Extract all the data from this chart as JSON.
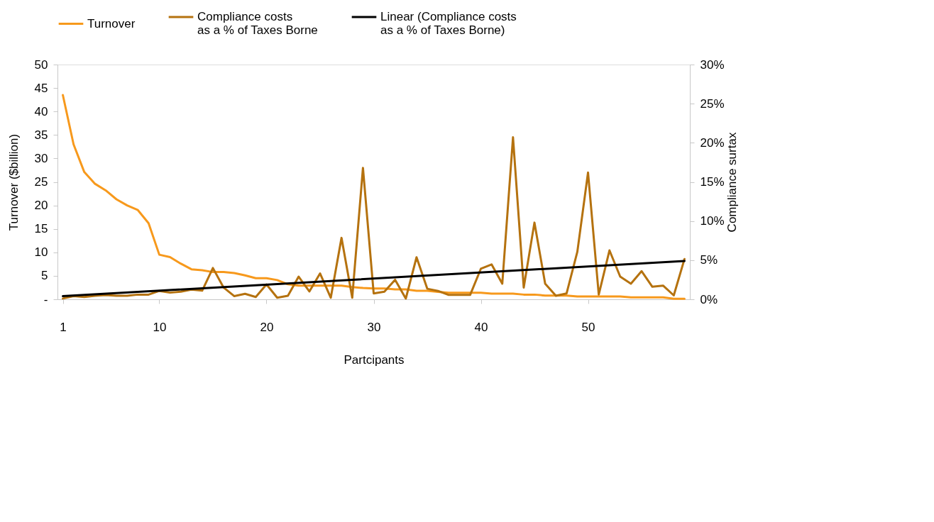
{
  "chart_data": {
    "type": "line",
    "xlabel": "Partcipants",
    "ylabel": "Turnover ($billion)",
    "y2label": "Compliance surtax",
    "legend": "top",
    "grid": false,
    "line_style": "solid",
    "marker": "none",
    "x": [
      1,
      2,
      3,
      4,
      5,
      6,
      7,
      8,
      9,
      10,
      11,
      12,
      13,
      14,
      15,
      16,
      17,
      18,
      19,
      20,
      21,
      22,
      23,
      24,
      25,
      26,
      27,
      28,
      29,
      30,
      31,
      32,
      33,
      34,
      35,
      36,
      37,
      38,
      39,
      40,
      41,
      42,
      43,
      44,
      45,
      46,
      47,
      48,
      49,
      50,
      51,
      52,
      53,
      54,
      55,
      56,
      57,
      58,
      59
    ],
    "xlim": [
      0.5,
      59.5
    ],
    "xticks": [
      1,
      10,
      20,
      30,
      40,
      50
    ],
    "ylim": [
      0,
      50
    ],
    "yticks": [
      {
        "value": 0,
        "label": "-"
      },
      5,
      10,
      15,
      20,
      25,
      30,
      35,
      40,
      45,
      50
    ],
    "y2lim": [
      0,
      30
    ],
    "y2ticks": [
      {
        "value": 0,
        "label": "0%"
      },
      {
        "value": 5,
        "label": "5%"
      },
      {
        "value": 10,
        "label": "10%"
      },
      {
        "value": 15,
        "label": "15%"
      },
      {
        "value": 20,
        "label": "20%"
      },
      {
        "value": 25,
        "label": "25%"
      },
      {
        "value": 30,
        "label": "30%"
      }
    ],
    "series": [
      {
        "name": "Turnover",
        "color": "#f7991c",
        "values": [
          43.5,
          33.0,
          27.1,
          24.6,
          23.2,
          21.3,
          20.0,
          19.0,
          16.2,
          9.5,
          9.0,
          7.6,
          6.4,
          6.2,
          5.8,
          5.8,
          5.6,
          5.1,
          4.5,
          4.5,
          4.1,
          3.2,
          2.9,
          2.9,
          2.9,
          2.9,
          2.9,
          2.6,
          2.4,
          2.3,
          2.3,
          2.1,
          2.1,
          1.8,
          1.8,
          1.6,
          1.4,
          1.4,
          1.4,
          1.4,
          1.2,
          1.2,
          1.2,
          1.0,
          1.0,
          0.8,
          0.8,
          0.8,
          0.6,
          0.6,
          0.6,
          0.6,
          0.6,
          0.4,
          0.4,
          0.4,
          0.4,
          0.1,
          0.1
        ]
      },
      {
        "name": "Compliance costs\nas a % of Taxes Borne",
        "color": "#b5720f",
        "axis": "y2",
        "values": [
          0.1,
          0.4,
          0.3,
          0.45,
          0.55,
          0.45,
          0.45,
          0.6,
          0.6,
          1.07,
          0.85,
          0.97,
          1.25,
          1.1,
          4.0,
          1.5,
          0.4,
          0.7,
          0.3,
          1.9,
          0.2,
          0.45,
          2.9,
          1.0,
          3.3,
          0.2,
          7.85,
          0.2,
          16.8,
          0.75,
          0.97,
          2.5,
          0.1,
          5.37,
          1.35,
          1.07,
          0.56,
          0.56,
          0.56,
          3.9,
          4.46,
          2.0,
          20.7,
          1.5,
          9.8,
          2.0,
          0.45,
          0.75,
          6.05,
          16.2,
          0.6,
          6.25,
          2.9,
          2.0,
          3.6,
          1.6,
          1.75,
          0.5,
          5.15
        ]
      },
      {
        "name": "Linear (Compliance costs\nas a % of Taxes Borne)",
        "color": "#000000",
        "axis": "y2",
        "type": "line",
        "x": [
          1,
          59
        ],
        "values": [
          0.4,
          4.9
        ]
      }
    ]
  }
}
